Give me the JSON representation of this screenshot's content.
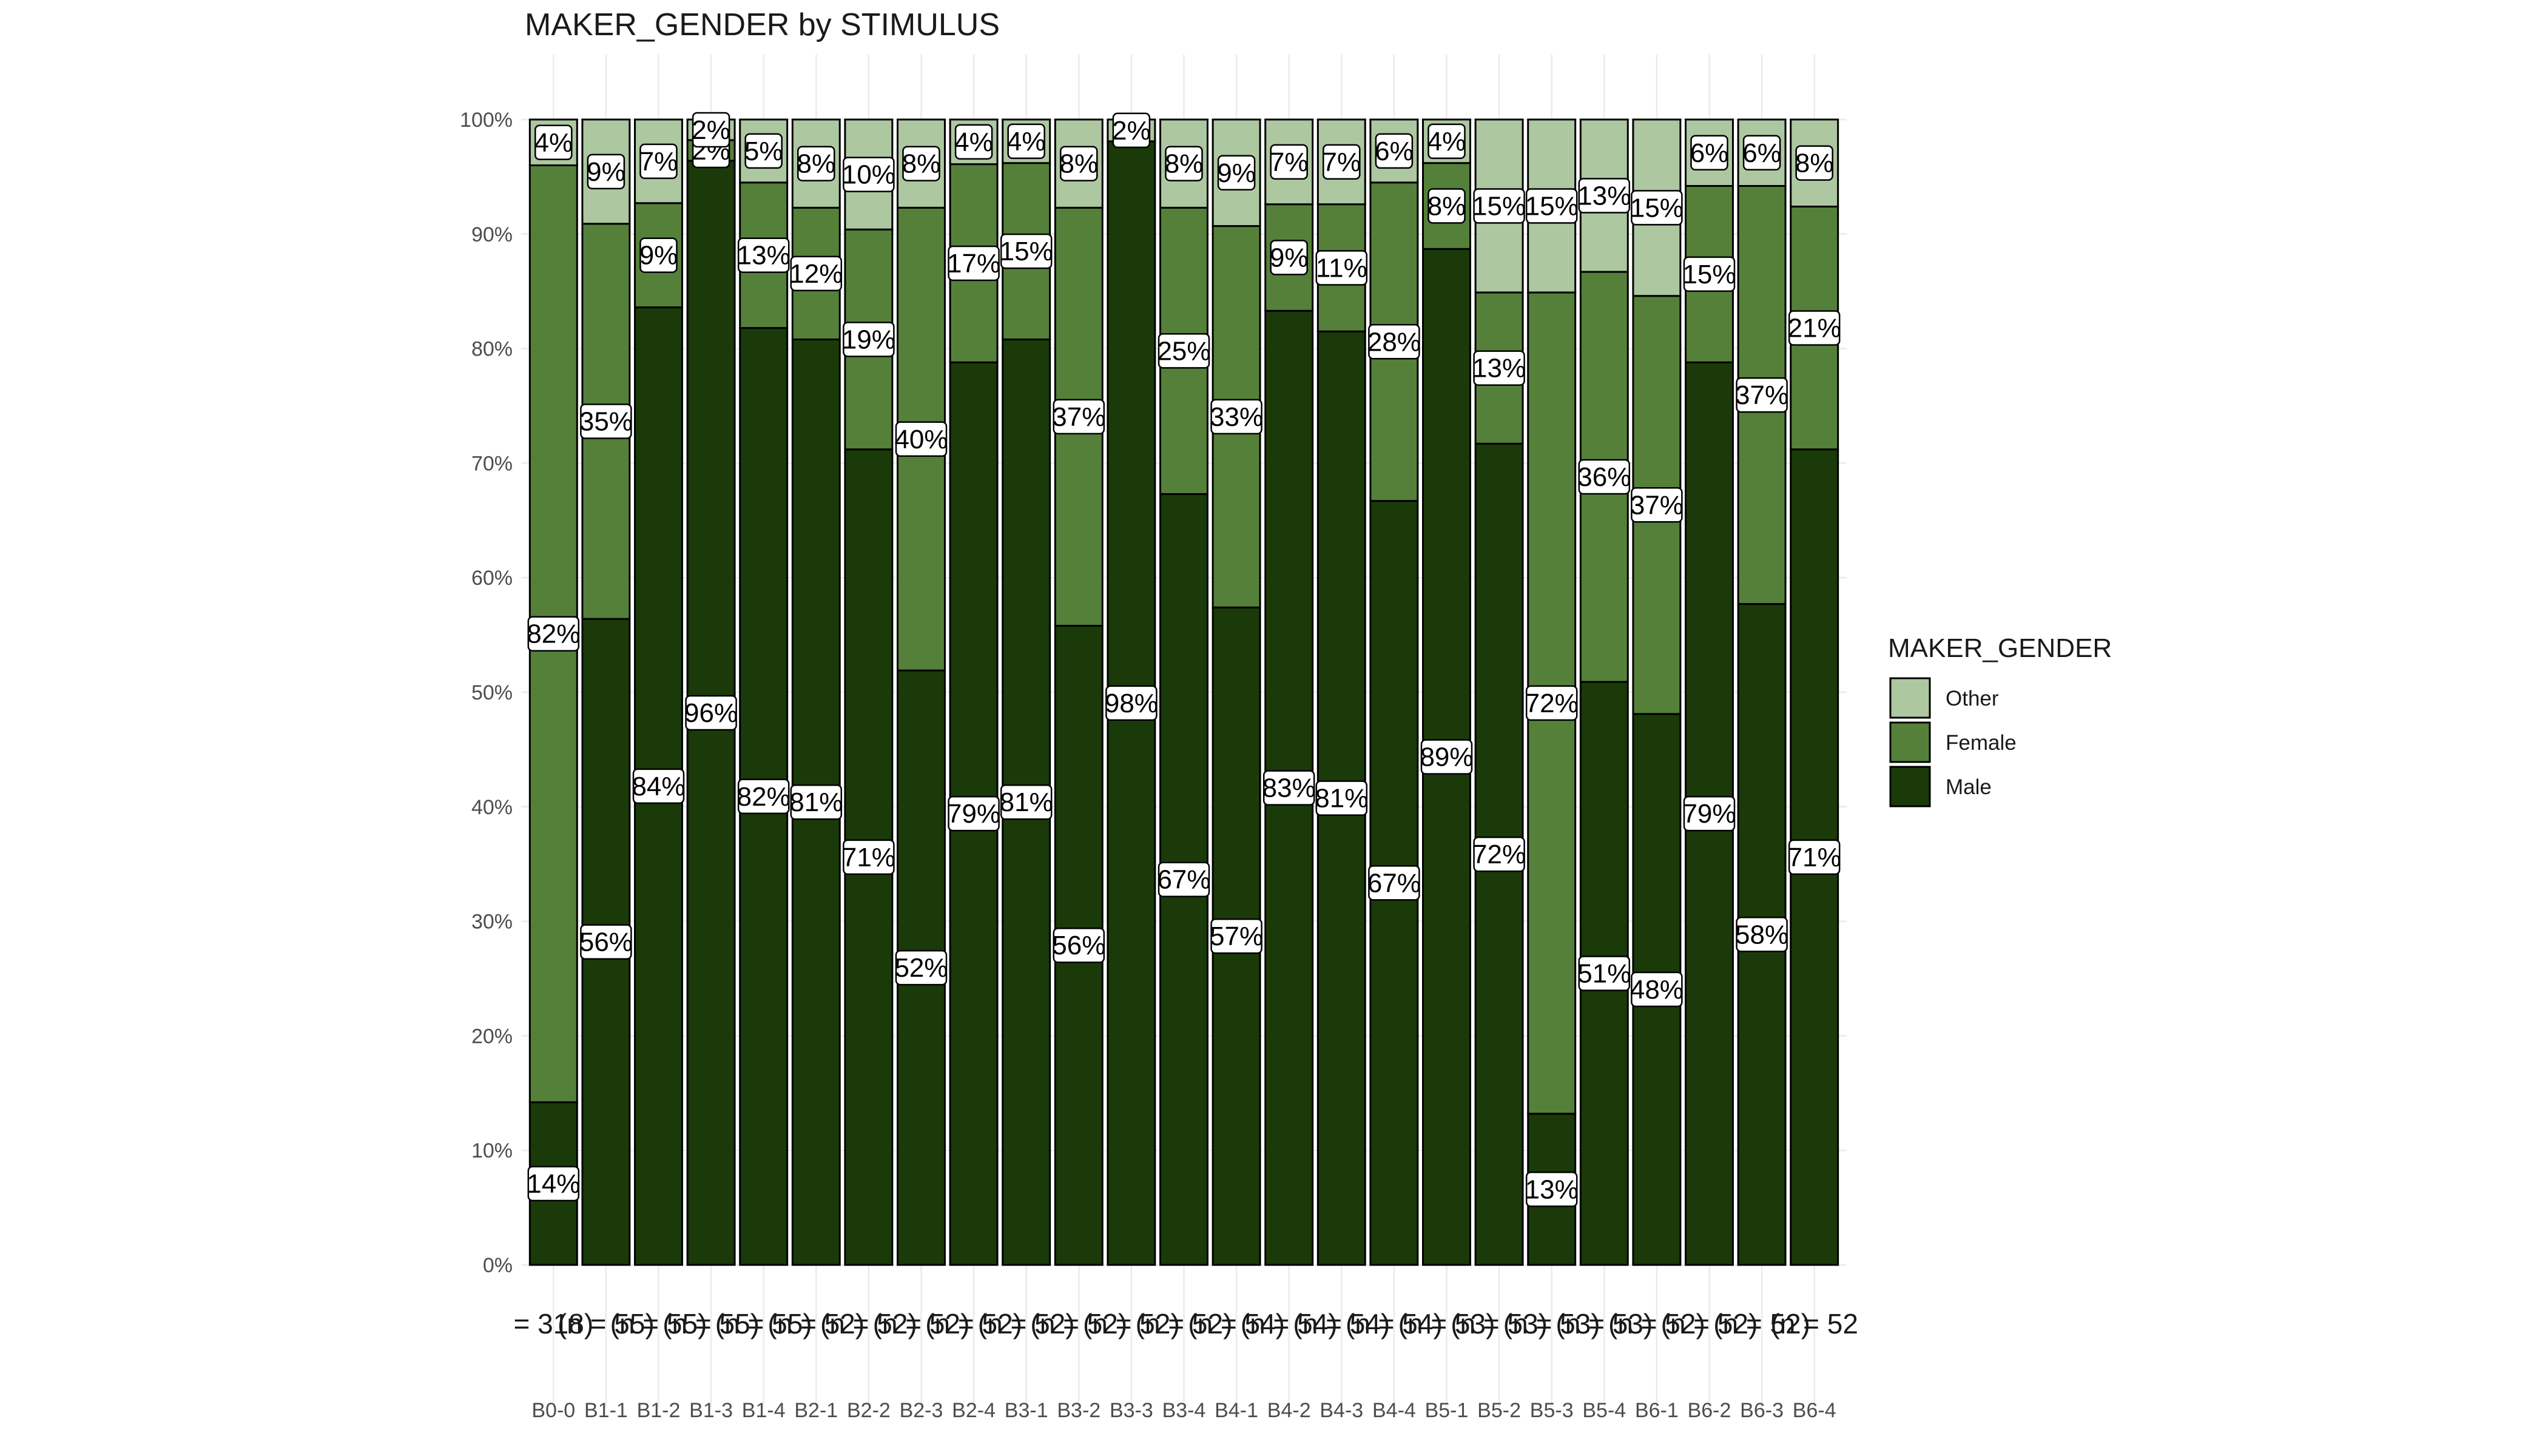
{
  "chart_data": {
    "type": "bar",
    "stacked": true,
    "title": "MAKER_GENDER by STIMULUS",
    "xlabel": "",
    "ylabel": "",
    "ylim": [
      0,
      100
    ],
    "yticks": [
      "0%",
      "10%",
      "20%",
      "30%",
      "40%",
      "50%",
      "60%",
      "70%",
      "80%",
      "90%",
      "100%"
    ],
    "grid": true,
    "legend": {
      "title": "MAKER_GENDER",
      "position": "right",
      "order": [
        "Other",
        "Female",
        "Male"
      ]
    },
    "colors": {
      "Male": "#1a3a0a",
      "Female": "#55803a",
      "Other": "#adc7a0"
    },
    "categories": [
      "B0-0",
      "B1-1",
      "B1-2",
      "B1-3",
      "B1-4",
      "B2-1",
      "B2-2",
      "B2-3",
      "B2-4",
      "B3-1",
      "B3-2",
      "B3-3",
      "B3-4",
      "B4-1",
      "B4-2",
      "B4-3",
      "B4-4",
      "B5-1",
      "B5-2",
      "B5-3",
      "B5-4",
      "B6-1",
      "B6-2",
      "B6-3",
      "B6-4"
    ],
    "n_labels": [
      "= 318)",
      "(n = 55)",
      "(n = 55)",
      "(n = 55)",
      "(n = 55)",
      "(n = 52)",
      "(n = 52)",
      "(n = 52)",
      "(n = 52)",
      "(n = 52)",
      "(n = 52)",
      "(n = 52)",
      "(n = 52)",
      "(n = 54)",
      "(n = 54)",
      "(n = 54)",
      "(n = 54)",
      "(n = 53)",
      "(n = 53)",
      "(n = 53)",
      "(n = 53)",
      "(n = 52)",
      "(n = 52)",
      "(n = 52)",
      "(n = 52"
    ],
    "series": [
      {
        "name": "Male",
        "values": [
          14.2,
          56.4,
          83.6,
          96.4,
          81.8,
          80.8,
          71.2,
          51.9,
          78.8,
          80.8,
          55.8,
          98.1,
          67.3,
          57.4,
          83.3,
          81.5,
          66.7,
          88.7,
          71.7,
          13.2,
          50.9,
          48.1,
          78.8,
          57.7,
          71.2
        ],
        "labels": [
          "14%",
          "56%",
          "84%",
          "96%",
          "82%",
          "81%",
          "71%",
          "52%",
          "79%",
          "81%",
          "56%",
          "98%",
          "67%",
          "57%",
          "83%",
          "81%",
          "67%",
          "89%",
          "72%",
          "13%",
          "51%",
          "48%",
          "79%",
          "58%",
          "71%"
        ]
      },
      {
        "name": "Female",
        "values": [
          81.8,
          34.5,
          9.1,
          1.8,
          12.7,
          11.5,
          19.2,
          40.4,
          17.3,
          15.4,
          36.5,
          0,
          25.0,
          33.3,
          9.3,
          11.1,
          27.8,
          7.5,
          13.2,
          71.7,
          35.8,
          36.5,
          15.4,
          36.5,
          21.2
        ],
        "labels": [
          "82%",
          "35%",
          "9%",
          "2%",
          "13%",
          "12%",
          "19%",
          "40%",
          "17%",
          "15%",
          "37%",
          "",
          "25%",
          "33%",
          "9%",
          "11%",
          "28%",
          "8%",
          "13%",
          "72%",
          "36%",
          "37%",
          "15%",
          "37%",
          "21%"
        ]
      },
      {
        "name": "Other",
        "values": [
          4.0,
          9.1,
          7.3,
          1.8,
          5.5,
          7.7,
          9.6,
          7.7,
          3.9,
          3.8,
          7.7,
          1.9,
          7.7,
          9.3,
          7.4,
          7.4,
          5.5,
          3.8,
          15.1,
          15.1,
          13.3,
          15.4,
          5.8,
          5.8,
          7.6
        ],
        "labels": [
          "4%",
          "9%",
          "7%",
          "2%",
          "5%",
          "8%",
          "10%",
          "8%",
          "4%",
          "4%",
          "8%",
          "2%",
          "8%",
          "9%",
          "7%",
          "7%",
          "6%",
          "4%",
          "15%",
          "15%",
          "13%",
          "15%",
          "6%",
          "6%",
          "8%"
        ]
      }
    ]
  }
}
